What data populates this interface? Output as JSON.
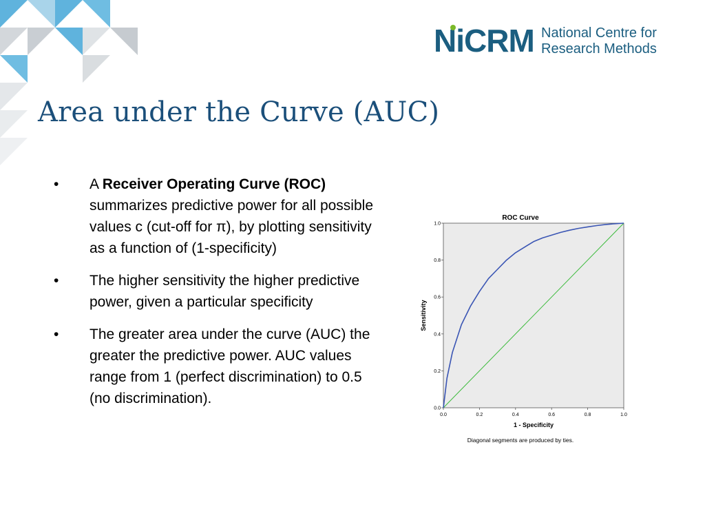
{
  "slide": {
    "title": "Area under the Curve (AUC)"
  },
  "logo": {
    "mark": "NiCRM",
    "line1": "National Centre for",
    "line2": "Research Methods"
  },
  "bullets": [
    {
      "prefix": "A ",
      "bold": "Receiver Operating Curve (ROC)",
      "rest": " summarizes predictive power for all possible values c (cut-off for π), by plotting sensitivity as a function of (1-specificity)"
    },
    {
      "text": "The higher sensitivity the higher predictive power, given a particular specificity"
    },
    {
      "text": "The greater area under the curve (AUC) the greater the predictive power. AUC values range from 1 (perfect discrimination) to 0.5 (no discrimination)."
    }
  ],
  "chart_data": {
    "type": "line",
    "title": "ROC Curve",
    "xlabel": "1 - Specificity",
    "ylabel": "Sensitivity",
    "footnote": "Diagonal segments are produced by ties.",
    "xlim": [
      0,
      1
    ],
    "ylim": [
      0,
      1
    ],
    "xticks": [
      "0.0",
      "0.2",
      "0.4",
      "0.6",
      "0.8",
      "1.0"
    ],
    "yticks": [
      "0.0",
      "0.2",
      "0.4",
      "0.6",
      "0.8",
      "1.0"
    ],
    "grid": false,
    "series": [
      {
        "color": "#3a55b4",
        "x": [
          0,
          0.02,
          0.05,
          0.1,
          0.15,
          0.2,
          0.25,
          0.3,
          0.35,
          0.4,
          0.45,
          0.5,
          0.55,
          0.6,
          0.65,
          0.7,
          0.75,
          0.8,
          0.85,
          0.9,
          0.95,
          1.0
        ],
        "y": [
          0,
          0.16,
          0.3,
          0.45,
          0.55,
          0.63,
          0.7,
          0.75,
          0.8,
          0.84,
          0.87,
          0.9,
          0.92,
          0.935,
          0.95,
          0.962,
          0.972,
          0.98,
          0.987,
          0.993,
          0.997,
          1.0
        ]
      },
      {
        "color": "#3dbb3d",
        "x": [
          0,
          1
        ],
        "y": [
          0,
          1
        ]
      }
    ],
    "colors": {
      "curve": "#3a55b4",
      "diagonal": "#3dbb3d",
      "plot_bg": "#ebebeb"
    }
  },
  "theme": {
    "title_color": "#1b4f7a",
    "logo_color": "#1b5e80",
    "logo_accent": "#7ab929"
  }
}
